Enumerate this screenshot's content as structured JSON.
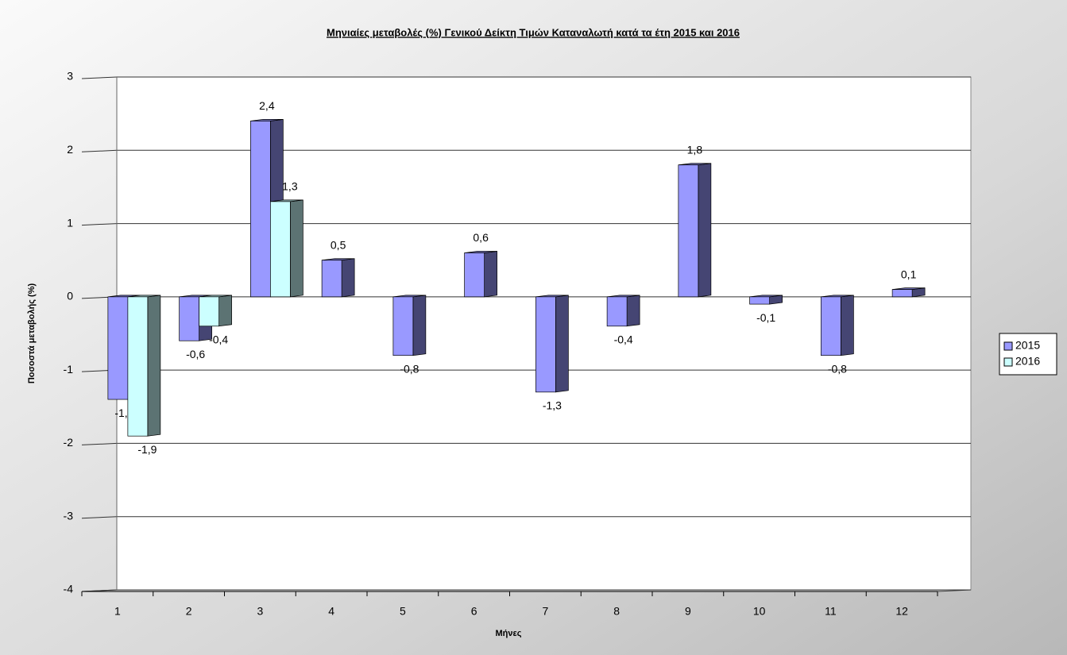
{
  "chart_data": {
    "type": "bar3d",
    "title": "Μηνιαίες μεταβολές (%) Γενικού Δείκτη Τιμών Καταναλωτή κατά τα έτη 2015 και 2016",
    "xlabel": "Μήνες",
    "ylabel": "Ποσοστά μεταβολής (%)",
    "categories": [
      "1",
      "2",
      "3",
      "4",
      "5",
      "6",
      "7",
      "8",
      "9",
      "10",
      "11",
      "12"
    ],
    "series": [
      {
        "name": "2015",
        "color": "#9999ff",
        "values": [
          -1.4,
          -0.6,
          2.4,
          0.5,
          -0.8,
          0.6,
          -1.3,
          -0.4,
          1.8,
          -0.1,
          -0.8,
          0.1
        ],
        "value_labels": [
          "-1,4",
          "-0,6",
          "2,4",
          "0,5",
          "-0,8",
          "0,6",
          "-1,3",
          "-0,4",
          "1,8",
          "-0,1",
          "-0,8",
          "0,1"
        ]
      },
      {
        "name": "2016",
        "color": "#ccffff",
        "values": [
          -1.9,
          -0.4,
          1.3,
          null,
          null,
          null,
          null,
          null,
          null,
          null,
          null,
          null
        ],
        "value_labels": [
          "-1,9",
          "-0,4",
          "1,3",
          null,
          null,
          null,
          null,
          null,
          null,
          null,
          null,
          null
        ]
      }
    ],
    "ylim": [
      -4,
      3
    ],
    "yticks": [
      -4,
      -3,
      -2,
      -1,
      0,
      1,
      2,
      3
    ],
    "grid": true,
    "legend": "right"
  }
}
